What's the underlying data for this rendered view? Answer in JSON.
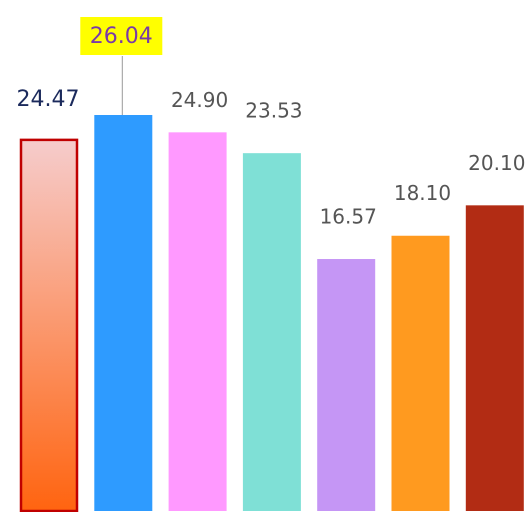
{
  "chart_data": {
    "type": "bar",
    "categories": [
      null,
      null,
      null,
      null,
      null,
      null,
      null
    ],
    "values": [
      24.47,
      26.04,
      24.9,
      23.53,
      16.57,
      18.1,
      20.1
    ],
    "value_labels": [
      "24.47",
      "26.04",
      "24.90",
      "23.53",
      "16.57",
      "18.10",
      "20.10"
    ],
    "colors": [
      "#ff6a1a",
      "#2e9bff",
      "#ff99ff",
      "#7fe0d6",
      "#c596f5",
      "#ff9a1f",
      "#b22c14"
    ]
  }
}
